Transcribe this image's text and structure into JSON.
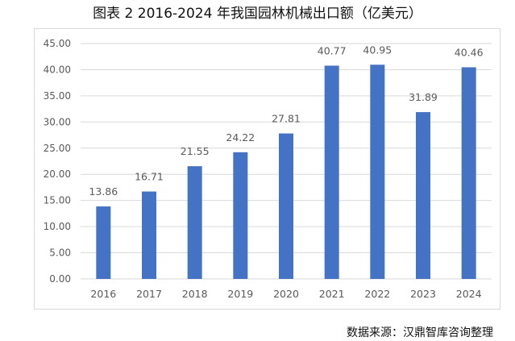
{
  "title": "图表 2 2016-2024 年我国园林机械出口额（亿美元）",
  "source": "数据来源：汉鼎智库咨询整理",
  "chart_data": {
    "type": "bar",
    "title": "图表 2 2016-2024 年我国园林机械出口额（亿美元）",
    "categories": [
      "2016",
      "2017",
      "2018",
      "2019",
      "2020",
      "2021",
      "2022",
      "2023",
      "2024"
    ],
    "values": [
      13.86,
      16.71,
      21.55,
      24.22,
      27.81,
      40.77,
      40.95,
      31.89,
      40.46
    ],
    "value_labels": [
      "13.86",
      "16.71",
      "21.55",
      "24.22",
      "27.81",
      "40.77",
      "40.95",
      "31.89",
      "40.46"
    ],
    "yticks": [
      "0.00",
      "5.00",
      "10.00",
      "15.00",
      "20.00",
      "25.00",
      "30.00",
      "35.00",
      "40.00",
      "45.00"
    ],
    "ylim": [
      0,
      45
    ],
    "grid": true,
    "legend": "none",
    "bar_color": "#4472c4",
    "grid_color": "#d9d9d9",
    "label_color": "#595959"
  }
}
